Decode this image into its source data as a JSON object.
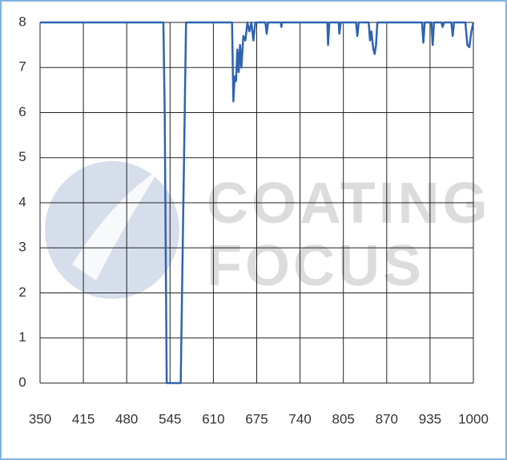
{
  "chart_data": {
    "type": "line",
    "x": [
      350,
      535,
      537,
      540,
      561,
      565,
      569,
      638,
      640,
      642,
      644,
      646,
      648,
      650,
      652,
      655,
      658,
      661,
      664,
      667,
      670,
      673,
      688,
      690,
      692,
      711,
      712,
      713,
      781,
      782,
      784,
      798,
      799,
      801,
      824,
      826,
      828,
      843,
      845,
      847,
      850,
      852,
      854,
      856,
      923,
      925,
      927,
      937,
      939,
      941,
      952,
      954,
      956,
      967,
      969,
      971,
      988,
      991,
      994,
      997,
      1000
    ],
    "series": [
      {
        "color": "#2e64b0",
        "values": [
          8,
          8,
          6,
          0,
          0,
          4,
          8,
          8,
          6.25,
          6.8,
          6.7,
          7.4,
          6.9,
          7.5,
          7.0,
          7.7,
          7.6,
          8,
          7.8,
          8,
          7.6,
          8,
          8,
          7.75,
          8,
          8,
          7.9,
          8,
          8,
          7.5,
          8,
          8,
          7.75,
          8,
          8,
          7.7,
          8,
          8,
          7.6,
          7.8,
          7.4,
          7.3,
          7.5,
          8,
          8,
          7.55,
          8,
          8,
          7.5,
          8,
          8,
          7.9,
          8,
          8,
          7.7,
          8,
          8,
          7.5,
          7.45,
          7.8,
          8
        ]
      }
    ],
    "xlim": [
      350,
      1000
    ],
    "ylim": [
      0,
      8
    ],
    "xticks": [
      350,
      415,
      480,
      545,
      610,
      675,
      740,
      805,
      870,
      935,
      1000
    ],
    "yticks": [
      0,
      1,
      2,
      3,
      4,
      5,
      6,
      7,
      8
    ],
    "grid": true
  },
  "watermark": {
    "lines": [
      "COATING",
      "FOCUS"
    ]
  }
}
